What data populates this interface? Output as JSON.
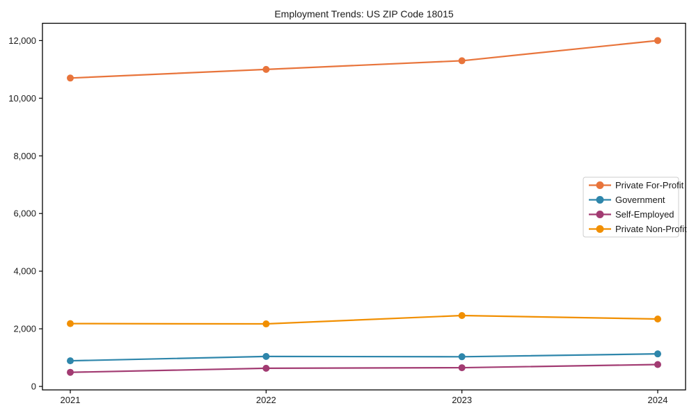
{
  "page": {
    "background": "#ffffff"
  },
  "chart_data": {
    "type": "line",
    "title": "Employment Trends: US ZIP Code 18015",
    "categories": [
      "2021",
      "2022",
      "2023",
      "2024"
    ],
    "series": [
      {
        "name": "Private For-Profit",
        "color": "#E8743B",
        "values": [
          10700,
          11000,
          11300,
          12000
        ]
      },
      {
        "name": "Government",
        "color": "#2E86AB",
        "values": [
          890,
          1040,
          1030,
          1130
        ]
      },
      {
        "name": "Self-Employed",
        "color": "#A23B72",
        "values": [
          490,
          630,
          650,
          760
        ]
      },
      {
        "name": "Private Non-Profit",
        "color": "#F18F01",
        "values": [
          2180,
          2170,
          2460,
          2340
        ]
      }
    ],
    "xlabel": "",
    "ylabel": "",
    "ylim": [
      -120,
      12600
    ],
    "yticks": [
      0,
      2000,
      4000,
      6000,
      8000,
      10000,
      12000
    ],
    "ytick_labels": [
      "0",
      "2,000",
      "4,000",
      "6,000",
      "8,000",
      "10,000",
      "12,000"
    ],
    "grid": false,
    "marker": "circle",
    "legend_position": "center-right",
    "axis_color": "#000000",
    "text_color": "#1a1a1a",
    "legend_border_color": "#cccccc",
    "legend_background": "#ffffff"
  }
}
